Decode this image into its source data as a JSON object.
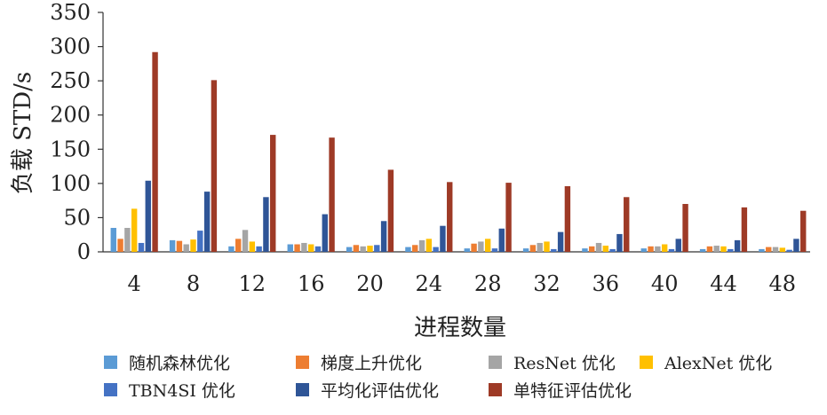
{
  "chart_data": {
    "type": "bar",
    "xlabel": "进程数量",
    "ylabel": "负载 STD/s",
    "ylim": [
      0,
      350
    ],
    "yticks": [
      0,
      50,
      100,
      150,
      200,
      250,
      300,
      350
    ],
    "grid": false,
    "legend_position": "bottom",
    "categories": [
      "4",
      "8",
      "12",
      "16",
      "20",
      "24",
      "28",
      "32",
      "36",
      "40",
      "44",
      "48"
    ],
    "series": [
      {
        "name": "随机森林优化",
        "color": "#5b9bd5",
        "values": [
          35,
          17,
          8,
          11,
          7,
          7,
          5,
          5,
          5,
          5,
          4,
          4
        ]
      },
      {
        "name": "梯度上升优化",
        "color": "#ed7d31",
        "values": [
          19,
          16,
          19,
          11,
          10,
          10,
          12,
          10,
          8,
          8,
          8,
          7
        ]
      },
      {
        "name": "ResNet 优化",
        "color": "#a5a5a5",
        "values": [
          35,
          11,
          32,
          13,
          8,
          17,
          15,
          13,
          13,
          8,
          9,
          7
        ]
      },
      {
        "name": "AlexNet 优化",
        "color": "#ffc000",
        "values": [
          63,
          18,
          15,
          11,
          9,
          19,
          19,
          15,
          9,
          11,
          8,
          6
        ]
      },
      {
        "name": "TBN4SI 优化",
        "color": "#4472c4",
        "values": [
          13,
          31,
          8,
          8,
          10,
          7,
          5,
          4,
          4,
          4,
          4,
          3
        ]
      },
      {
        "name": "平均化评估优化",
        "color": "#2f5597",
        "values": [
          104,
          88,
          80,
          55,
          45,
          38,
          34,
          29,
          26,
          19,
          17,
          19
        ]
      },
      {
        "name": "单特征评估优化",
        "color": "#9e3a26",
        "values": [
          292,
          251,
          171,
          167,
          120,
          102,
          101,
          96,
          80,
          70,
          65,
          60
        ]
      }
    ]
  }
}
